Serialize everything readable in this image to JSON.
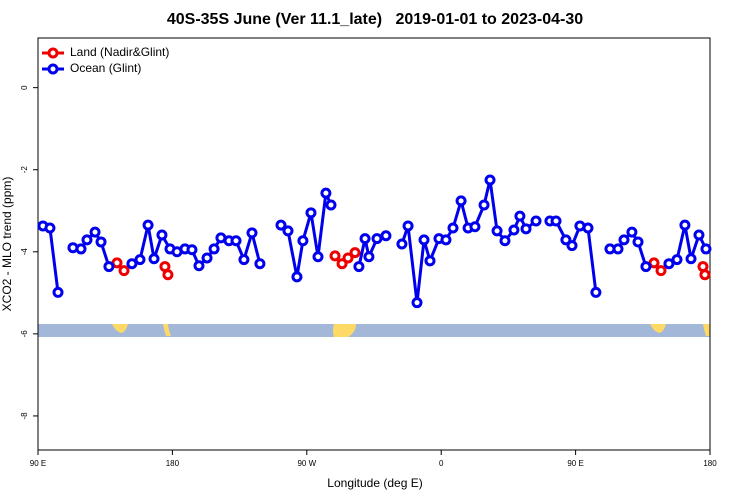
{
  "chart_data": {
    "type": "line",
    "title": "40S-35S June (Ver 11.1_late)   2019-01-01 to 2023-04-30",
    "xlabel": "Longitude (deg E)",
    "ylabel": "XCO2 - MLO trend (ppm)",
    "xlim": [
      -270,
      180
    ],
    "xticks": [
      {
        "value": -270,
        "label": "90 E"
      },
      {
        "value": -180,
        "label": "180"
      },
      {
        "value": -90,
        "label": "90 W"
      },
      0,
      {
        "value": 90,
        "label": "90 E"
      },
      180
    ],
    "ylim": [
      -8.83,
      1.21
    ],
    "yticks": [
      0,
      -2,
      -4,
      -6,
      -8
    ],
    "grid": false,
    "legend": "upper left",
    "series": [
      {
        "name": "Land (Nadir&Glint)",
        "color": "#ee0000",
        "x": [
          -217.1,
          -212.4,
          null,
          -185.0,
          -183.0,
          null,
          -71.1,
          -66.4,
          -62.4,
          -57.7,
          null,
          142.5,
          147.2,
          null,
          175.3,
          176.6
        ],
        "values": [
          -4.27,
          -4.46,
          null,
          -4.36,
          -4.56,
          null,
          -4.1,
          -4.29,
          -4.15,
          -4.02,
          null,
          -4.27,
          -4.46,
          null,
          -4.36,
          -4.56
        ]
      },
      {
        "name": "Ocean (Glint)",
        "color": "#0000ee",
        "x": [
          -266.7,
          -262.0,
          -256.6,
          null,
          -246.6,
          -241.2,
          -237.2,
          -231.8,
          -227.8,
          -222.5,
          null,
          -207.1,
          -201.7,
          -196.3,
          -192.3,
          -187.0,
          -181.6,
          -176.9,
          -171.6,
          -166.9,
          -162.2,
          -156.8,
          -152.1,
          -147.5,
          -142.1,
          -137.4,
          -132.1,
          -126.7,
          -121.4,
          null,
          -107.3,
          -102.6,
          -96.6,
          -92.6,
          -87.2,
          -82.5,
          -77.2,
          -73.8,
          null,
          -55.1,
          -51.0,
          -48.4,
          -43.0,
          -37.0,
          null,
          -26.3,
          -22.2,
          -16.2,
          -11.5,
          -7.5,
          -1.5,
          3.2,
          7.9,
          13.3,
          18.0,
          22.6,
          28.7,
          32.7,
          37.4,
          42.7,
          48.7,
          52.7,
          56.8,
          63.5,
          null,
          72.8,
          76.9,
          83.5,
          87.6,
          92.9,
          98.3,
          103.6,
          null,
          113.0,
          118.4,
          122.4,
          127.7,
          131.8,
          137.1,
          null,
          152.5,
          157.9,
          163.2,
          167.3,
          172.6,
          177.3
        ],
        "values": [
          -3.37,
          -3.42,
          -4.99,
          null,
          -3.9,
          -3.93,
          -3.71,
          -3.52,
          -3.76,
          -4.36,
          null,
          -4.29,
          -4.19,
          -3.35,
          -4.17,
          -3.59,
          -3.93,
          -4.0,
          -3.93,
          -3.95,
          -4.34,
          -4.15,
          -3.93,
          -3.66,
          -3.73,
          -3.73,
          -4.19,
          -3.54,
          -4.29,
          null,
          -3.35,
          -3.49,
          -4.61,
          -3.73,
          -3.05,
          -4.12,
          -2.57,
          -2.86,
          null,
          -4.36,
          -3.68,
          -4.12,
          -3.68,
          -3.61,
          null,
          -3.81,
          -3.37,
          -5.24,
          -3.71,
          -4.22,
          -3.68,
          -3.71,
          -3.42,
          -2.76,
          -3.42,
          -3.39,
          -2.86,
          -2.25,
          -3.49,
          -3.73,
          -3.47,
          -3.13,
          -3.44,
          -3.25,
          null,
          -3.25,
          -3.25,
          -3.71,
          -3.85,
          -3.37,
          -3.42,
          -4.99,
          null,
          -3.93,
          -3.93,
          -3.71,
          -3.52,
          -3.76,
          -4.36,
          null,
          -4.29,
          -4.19,
          -3.35,
          -4.17,
          -3.59,
          -3.93
        ]
      }
    ]
  }
}
